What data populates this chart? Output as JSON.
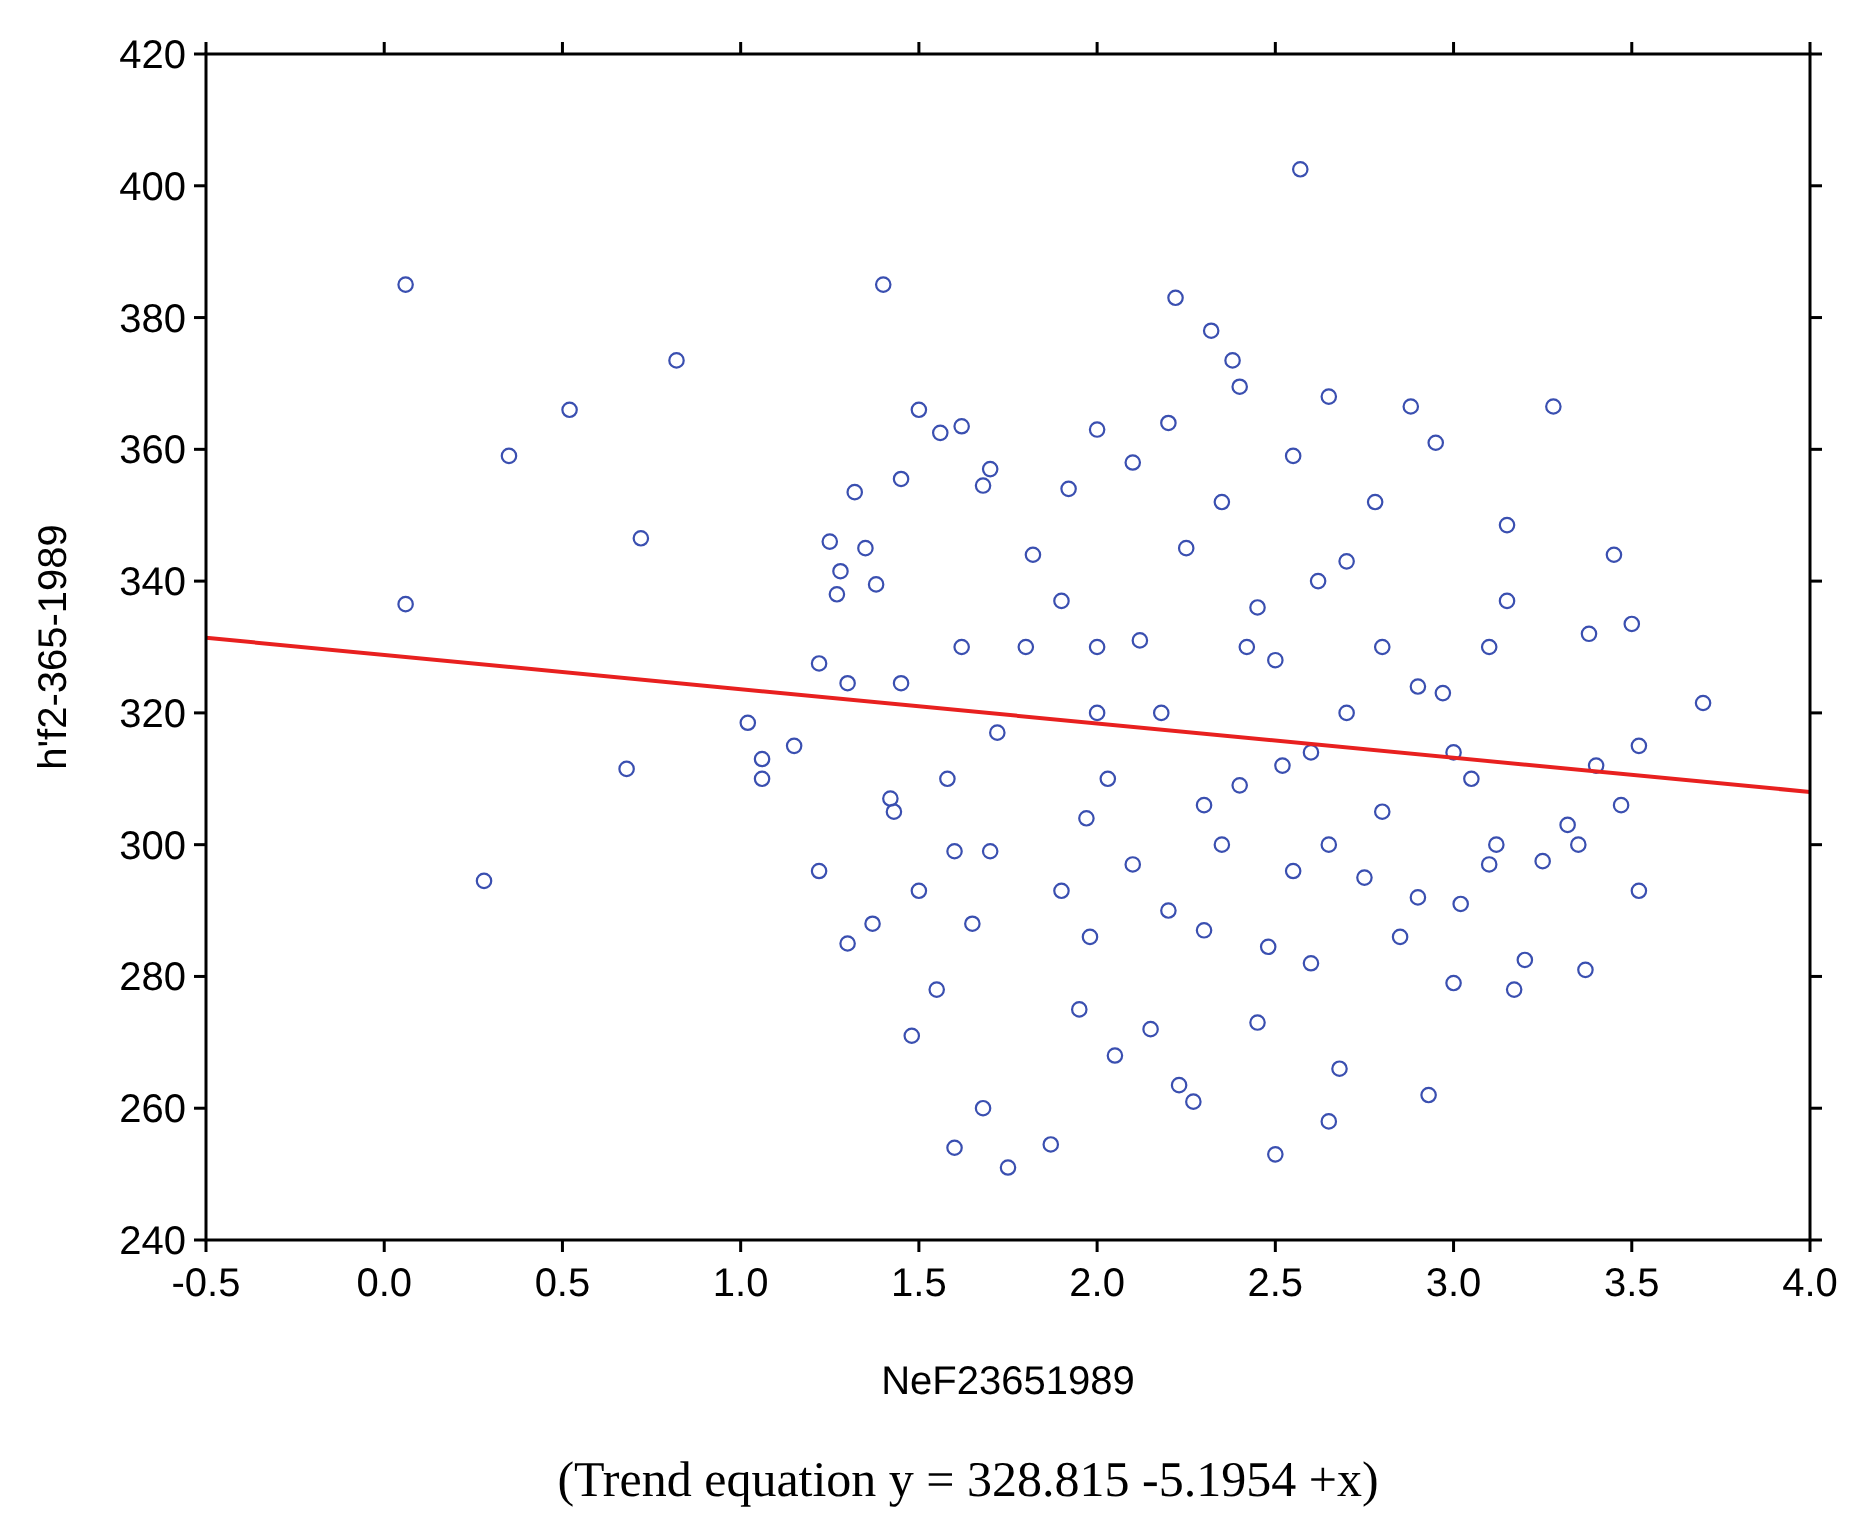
{
  "chart_data": {
    "type": "scatter",
    "xlabel": "NeF23651989",
    "ylabel": "h'f2-365-1989",
    "annotations": [
      "(Trend equation y = 328.815 -5.1954 +x)"
    ],
    "xlim": [
      -0.5,
      4.0
    ],
    "xticks": [
      -0.5,
      {
        "value": 0,
        "label": "0.0"
      },
      0.5,
      {
        "value": 1,
        "label": "1.0"
      },
      1.5,
      {
        "value": 2,
        "label": "2.0"
      },
      2.5,
      {
        "value": 3,
        "label": "3.0"
      },
      3.5,
      {
        "value": 4,
        "label": "4.0"
      }
    ],
    "ylim": [
      240,
      420
    ],
    "yticks": [
      240,
      260,
      280,
      300,
      320,
      340,
      360,
      380,
      400,
      420
    ],
    "grid": false,
    "series": [
      {
        "color": "#3a4fb0",
        "marker": "circle",
        "x": [
          0.06,
          0.06,
          0.28,
          0.35,
          0.52,
          0.68,
          0.72,
          0.82,
          1.02,
          1.06,
          1.06,
          1.15,
          1.22,
          1.22,
          1.25,
          1.28,
          1.27,
          1.3,
          1.3,
          1.32,
          1.35,
          1.37,
          1.38,
          1.4,
          1.42,
          1.43,
          1.45,
          1.45,
          1.48,
          1.5,
          1.5,
          1.55,
          1.56,
          1.58,
          1.6,
          1.6,
          1.62,
          1.62,
          1.65,
          1.68,
          1.68,
          1.7,
          1.72,
          1.75,
          1.8,
          1.82,
          1.87,
          1.9,
          1.92,
          1.95,
          1.97,
          2.0,
          2.0,
          2.03,
          2.05,
          2.1,
          2.12,
          2.15,
          2.18,
          2.2,
          2.22,
          2.23,
          2.25,
          2.27,
          2.3,
          2.32,
          2.35,
          2.38,
          2.4,
          2.42,
          2.45,
          2.48,
          2.5,
          2.52,
          2.55,
          2.57,
          2.6,
          2.62,
          2.65,
          2.65,
          2.68,
          2.7,
          2.75,
          2.78,
          2.8,
          2.85,
          2.88,
          2.9,
          2.93,
          2.95,
          2.97,
          3.0,
          3.02,
          3.05,
          3.1,
          3.12,
          3.15,
          3.15,
          3.17,
          3.2,
          3.25,
          3.28,
          3.32,
          3.35,
          3.37,
          3.38,
          3.4,
          3.45,
          3.47,
          3.5,
          3.52,
          3.52,
          3.7,
          2.45,
          2.3,
          2.6,
          2.1,
          1.9,
          2.8,
          2.0,
          2.5,
          2.7,
          1.7,
          3.0,
          2.2,
          2.4,
          2.55,
          2.9,
          1.98,
          2.35,
          2.65,
          3.1
        ],
        "values": [
          385,
          336.5,
          294.5,
          359,
          366,
          311.5,
          346.5,
          373.5,
          318.5,
          313,
          310,
          315,
          296,
          327.5,
          346,
          341.5,
          338,
          324.5,
          285,
          353.5,
          345,
          288,
          339.5,
          385,
          307,
          305,
          355.5,
          324.5,
          271,
          366,
          293,
          278,
          362.5,
          310,
          254,
          299,
          363.5,
          330,
          288,
          354.5,
          260,
          357,
          317,
          251,
          330,
          344,
          254.5,
          293,
          354,
          275,
          304,
          363,
          330,
          310,
          268,
          358,
          331,
          272,
          320,
          364,
          383,
          263.5,
          345,
          261,
          287,
          378,
          300,
          373.5,
          369.5,
          330,
          273,
          284.5,
          253,
          312,
          359,
          402.5,
          282,
          340,
          368,
          258,
          266,
          320,
          295,
          352,
          330,
          286,
          366.5,
          324,
          262,
          361,
          323,
          279,
          291,
          310,
          297,
          300,
          348.5,
          337,
          278,
          282.5,
          297.5,
          366.5,
          303,
          300,
          281,
          332,
          312,
          344,
          306,
          333.5,
          315,
          293,
          321.5,
          336,
          306,
          314,
          297,
          337,
          305,
          320,
          328,
          343,
          299,
          314,
          290,
          309,
          296,
          292,
          286,
          352,
          300,
          330
        ]
      },
      {
        "type": "line",
        "color": "#e8201f",
        "marker": "none",
        "x": [
          -0.5,
          4.0
        ],
        "values": [
          331.4,
          308.0
        ]
      }
    ]
  }
}
